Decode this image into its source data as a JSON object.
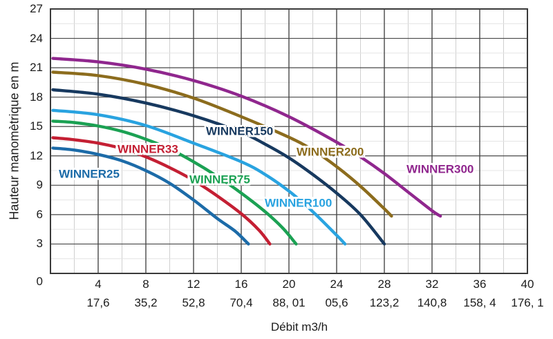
{
  "chart_data": {
    "type": "line",
    "title": "",
    "xlabel": "Débit m3/h",
    "ylabel": "Hauteur manomètrique en m",
    "xlim": [
      0,
      40
    ],
    "ylim": [
      0,
      27
    ],
    "grid": {
      "x_major_step": 4,
      "x_minor_step": 2,
      "y_major_step": 3,
      "y_minor_step": 1.5,
      "major_color": "#474747",
      "minor_color": "#dcdcdc",
      "frame_color": "#3a3a3a"
    },
    "origin_label": "0",
    "x_ticks": {
      "values": [
        4,
        8,
        12,
        16,
        20,
        24,
        28,
        32,
        36,
        40
      ],
      "labels": [
        "4",
        "8",
        "12",
        "16",
        "20",
        "24",
        "28",
        "32",
        "36",
        "40"
      ],
      "labels_row2": [
        "17,6",
        "35,2",
        "52,8",
        "70,4",
        "88, 01",
        "05,6",
        "123,2",
        "140,8",
        "158, 4",
        "176, 1"
      ]
    },
    "y_ticks": {
      "values": [
        3,
        6,
        9,
        12,
        15,
        18,
        21,
        24,
        27
      ],
      "labels": [
        "3",
        "6",
        "9",
        "12",
        "15",
        "18",
        "21",
        "24",
        "27"
      ]
    },
    "series": [
      {
        "name": "WINNER25",
        "color": "#1c6ba8",
        "label_q": 0.7,
        "label_h": 10.15,
        "points": [
          [
            0.2,
            12.8
          ],
          [
            2,
            12.6
          ],
          [
            4,
            12.15
          ],
          [
            6,
            11.5
          ],
          [
            8,
            10.5
          ],
          [
            10,
            9.2
          ],
          [
            12,
            7.5
          ],
          [
            14,
            5.6
          ],
          [
            15.5,
            4.3
          ],
          [
            16.6,
            3.0
          ]
        ]
      },
      {
        "name": "WINNER33",
        "color": "#c41f33",
        "label_q": 5.62,
        "label_h": 12.69,
        "points": [
          [
            0.2,
            13.85
          ],
          [
            2,
            13.65
          ],
          [
            4,
            13.3
          ],
          [
            6,
            12.75
          ],
          [
            8,
            11.9
          ],
          [
            10,
            10.8
          ],
          [
            12,
            9.5
          ],
          [
            14,
            7.9
          ],
          [
            16,
            6.1
          ],
          [
            17.5,
            4.4
          ],
          [
            18.4,
            3.0
          ]
        ]
      },
      {
        "name": "WINNER75",
        "color": "#1ba153",
        "label_q": 11.65,
        "label_h": 9.59,
        "points": [
          [
            0.2,
            15.55
          ],
          [
            2,
            15.4
          ],
          [
            4,
            15.05
          ],
          [
            6,
            14.5
          ],
          [
            8,
            13.7
          ],
          [
            10,
            12.7
          ],
          [
            12,
            11.4
          ],
          [
            14,
            9.9
          ],
          [
            16,
            8.2
          ],
          [
            18,
            6.3
          ],
          [
            19.5,
            4.6
          ],
          [
            20.6,
            3.0
          ]
        ]
      },
      {
        "name": "WINNER100",
        "color": "#29a3e0",
        "label_q": 17.97,
        "label_h": 7.22,
        "points": [
          [
            0.2,
            16.65
          ],
          [
            4,
            16.2
          ],
          [
            8,
            15.1
          ],
          [
            12,
            13.3
          ],
          [
            16,
            11.4
          ],
          [
            18,
            10.1
          ],
          [
            20,
            8.4
          ],
          [
            22,
            6.3
          ],
          [
            24,
            3.9
          ],
          [
            24.7,
            3.0
          ]
        ]
      },
      {
        "name": "WINNER150",
        "color": "#17395f",
        "label_q": 13.04,
        "label_h": 14.52,
        "points": [
          [
            0.2,
            18.75
          ],
          [
            4,
            18.3
          ],
          [
            8,
            17.4
          ],
          [
            12,
            16.1
          ],
          [
            16,
            14.4
          ],
          [
            18,
            13.2
          ],
          [
            20,
            11.8
          ],
          [
            22,
            10.1
          ],
          [
            24,
            8.2
          ],
          [
            26,
            6.0
          ],
          [
            28,
            3.0
          ]
        ]
      },
      {
        "name": "WINNER200",
        "color": "#8c6c1d",
        "label_q": 20.64,
        "label_h": 12.44,
        "points": [
          [
            0.2,
            20.55
          ],
          [
            4,
            20.2
          ],
          [
            8,
            19.3
          ],
          [
            12,
            17.9
          ],
          [
            16,
            16.0
          ],
          [
            20,
            13.9
          ],
          [
            22,
            12.6
          ],
          [
            24,
            10.9
          ],
          [
            26,
            8.9
          ],
          [
            28,
            6.6
          ],
          [
            28.6,
            5.85
          ]
        ]
      },
      {
        "name": "WINNER300",
        "color": "#90278e",
        "label_q": 29.86,
        "label_h": 10.64,
        "points": [
          [
            0.2,
            21.95
          ],
          [
            4,
            21.6
          ],
          [
            8,
            20.85
          ],
          [
            12,
            19.7
          ],
          [
            16,
            18.1
          ],
          [
            20,
            16.0
          ],
          [
            24,
            13.4
          ],
          [
            26,
            11.9
          ],
          [
            28,
            10.2
          ],
          [
            30,
            8.3
          ],
          [
            32,
            6.4
          ],
          [
            32.7,
            5.85
          ]
        ]
      }
    ]
  }
}
